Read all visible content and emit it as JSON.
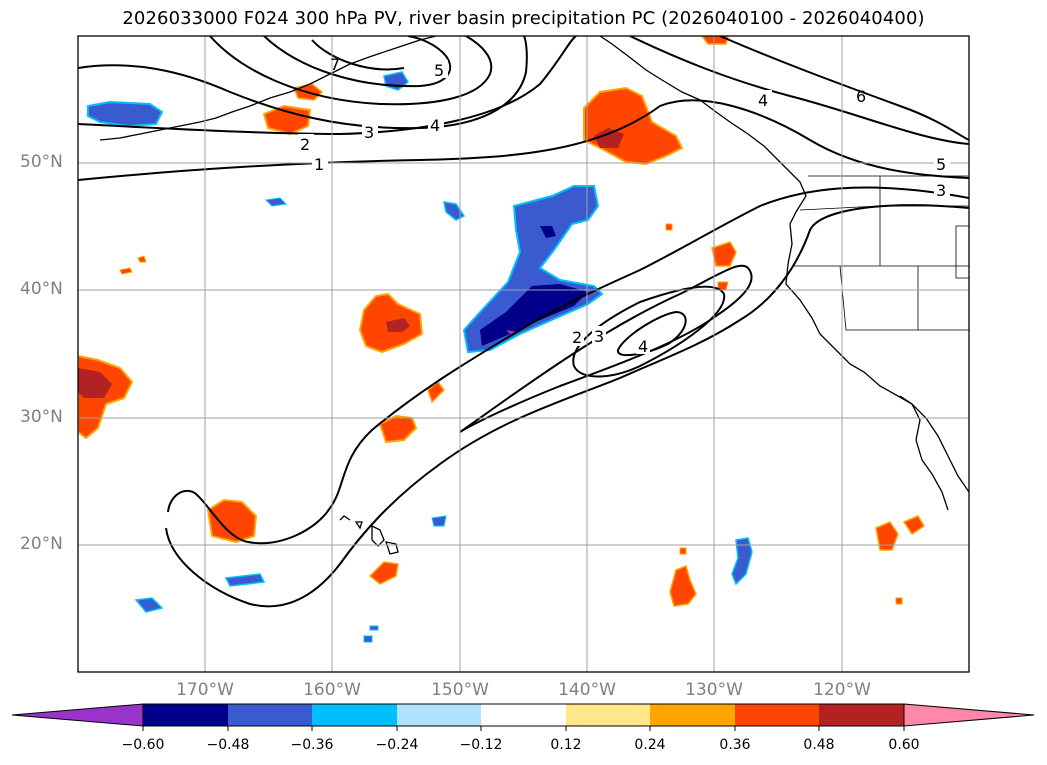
{
  "title": "2026033000 F024 300 hPa PV, river basin precipitation PC (2026040100 - 2026040400)",
  "map": {
    "lon_range": [
      -180,
      -110
    ],
    "lat_range": [
      10,
      60
    ],
    "lat_ticks": [
      {
        "value": 50,
        "label": "50°N"
      },
      {
        "value": 40,
        "label": "40°N"
      },
      {
        "value": 30,
        "label": "30°N"
      },
      {
        "value": 20,
        "label": "20°N"
      }
    ],
    "lon_ticks": [
      {
        "value": -170,
        "label": "170°W"
      },
      {
        "value": -160,
        "label": "160°W"
      },
      {
        "value": -150,
        "label": "150°W"
      },
      {
        "value": -140,
        "label": "140°W"
      },
      {
        "value": -130,
        "label": "130°W"
      },
      {
        "value": -120,
        "label": "120°W"
      }
    ],
    "grid": true,
    "contour_labels": [
      "1",
      "2",
      "3",
      "4",
      "5",
      "6",
      "7",
      "2",
      "3",
      "4",
      "4",
      "5",
      "3"
    ]
  },
  "colorbar": {
    "tick_labels": [
      "−0.60",
      "−0.48",
      "−0.36",
      "−0.24",
      "−0.12",
      "0.12",
      "0.24",
      "0.36",
      "0.48",
      "0.60"
    ],
    "colors": [
      "#9933cc",
      "#00008b",
      "#3a5bd0",
      "#00bfff",
      "#b0e2ff",
      "#ffffff",
      "#ffe88a",
      "#ffa500",
      "#ff4500",
      "#b22222",
      "#ff88aa"
    ],
    "extend": "both"
  }
}
